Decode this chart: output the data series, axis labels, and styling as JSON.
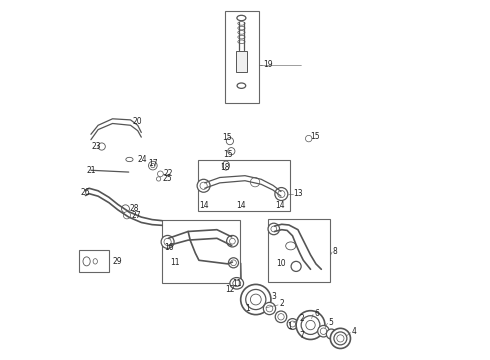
{
  "bg_color": "#ffffff",
  "line_color": "#555555",
  "label_color": "#333333",
  "fig_width": 4.9,
  "fig_height": 3.6,
  "dpi": 100
}
